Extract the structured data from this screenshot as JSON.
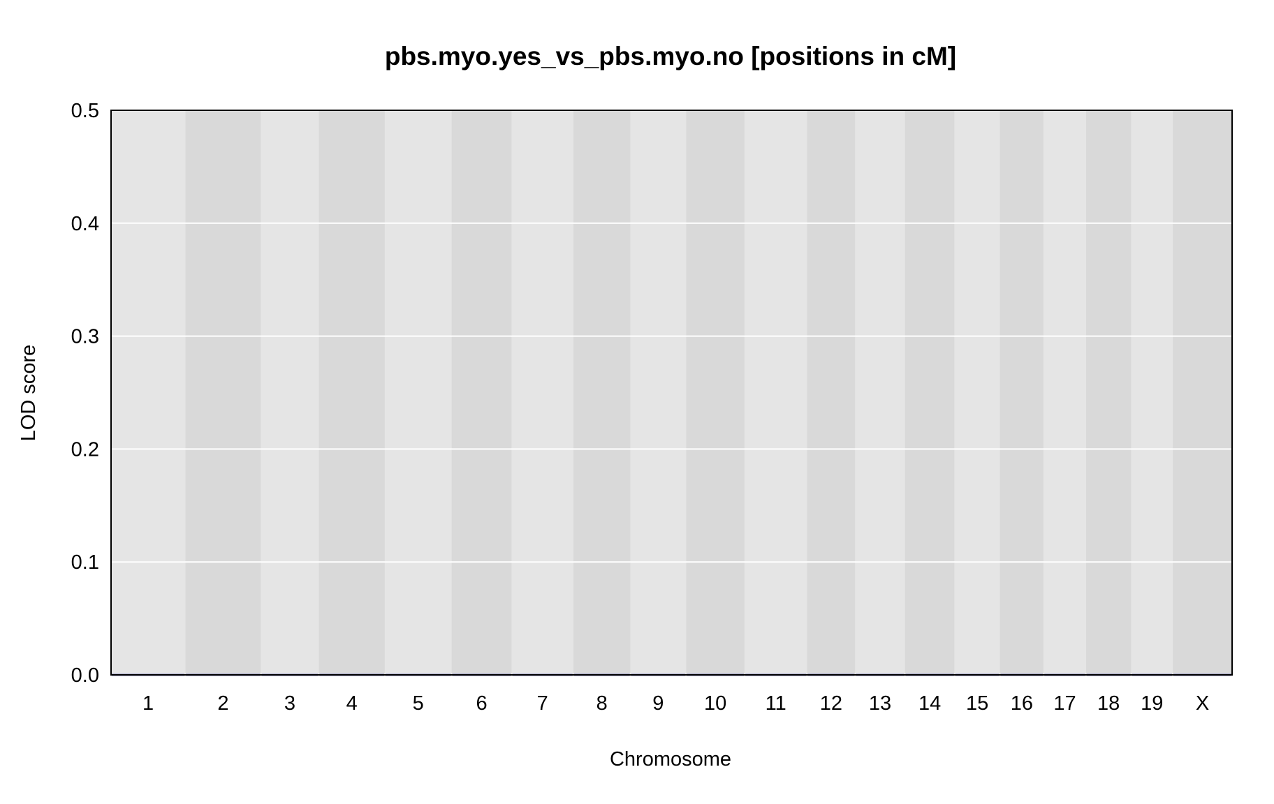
{
  "chart_data": {
    "type": "line",
    "title": "pbs.myo.yes_vs_pbs.myo.no [positions in cM]",
    "xlabel": "Chromosome",
    "ylabel": "LOD score",
    "ylim": [
      0,
      0.5
    ],
    "yticks": [
      "0.0",
      "0.1",
      "0.2",
      "0.3",
      "0.4",
      "0.5"
    ],
    "grid": true,
    "categories": [
      "1",
      "2",
      "3",
      "4",
      "5",
      "6",
      "7",
      "8",
      "9",
      "10",
      "11",
      "12",
      "13",
      "14",
      "15",
      "16",
      "17",
      "18",
      "19",
      "X"
    ],
    "chromosome_lengths_cM": [
      100,
      102,
      78,
      89,
      90,
      81,
      83,
      77,
      75,
      79,
      84,
      65,
      67,
      67,
      61,
      59,
      57,
      61,
      56,
      80
    ],
    "series": [
      {
        "values": [
          0,
          0,
          0,
          0,
          0,
          0,
          0,
          0,
          0,
          0,
          0,
          0,
          0,
          0,
          0,
          0,
          0,
          0,
          0,
          0
        ]
      }
    ],
    "colors": {
      "band_light": "#e5e5e5",
      "band_dark": "#d9d9d9",
      "gridline": "#ffffff",
      "line": "#00008b",
      "frame": "#000000"
    }
  }
}
